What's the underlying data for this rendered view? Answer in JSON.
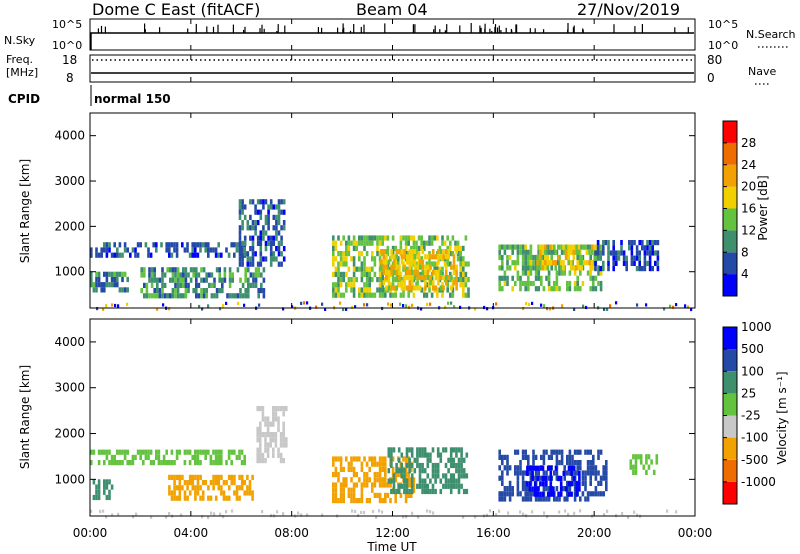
{
  "header": {
    "station": "Dome C East (fitACF)",
    "beam": "Beam 04",
    "date": "27/Nov/2019"
  },
  "top_panels": {
    "nsky_label": "N.Sky",
    "nsky_ticks": [
      "10^5",
      "10^0"
    ],
    "nsearch_label": "N.Search",
    "nsearch_ticks": [
      "10^5",
      "10^0"
    ],
    "freq_label": "Freq.",
    "freq_unit": "[MHz]",
    "freq_ticks": [
      "18",
      "8"
    ],
    "nave_label": "Nave",
    "nave_ticks": [
      "80",
      "0"
    ],
    "cpid_label": "CPID",
    "cpid_value": "normal 150"
  },
  "colors": {
    "power_scale": [
      "#0000ff",
      "#2449a6",
      "#3e8f6e",
      "#63c23e",
      "#f2d000",
      "#f2a200",
      "#ef6d00",
      "#ff0000"
    ],
    "velocity_scale": [
      "#ff0000",
      "#ef6d00",
      "#f2a200",
      "#c8c8c8",
      "#63c23e",
      "#3e8f6e",
      "#2449a6",
      "#0000ff"
    ]
  },
  "chart_data": [
    {
      "type": "heatmap",
      "name": "power",
      "ylabel": "Slant Range [km]",
      "yticks": [
        "1000",
        "2000",
        "3000",
        "4000"
      ],
      "ylim": [
        200,
        4500
      ],
      "colorbar_label": "Power [dB]",
      "colorbar_ticks": [
        "4",
        "8",
        "12",
        "16",
        "20",
        "24",
        "28"
      ],
      "colorbar_range": [
        0,
        32
      ],
      "regions": [
        {
          "x": [
            0.0,
            6.1
          ],
          "range": [
            1350,
            1650
          ],
          "value": 6
        },
        {
          "x": [
            0.0,
            1.5
          ],
          "range": [
            600,
            1000
          ],
          "value": 9
        },
        {
          "x": [
            2.0,
            6.9
          ],
          "range": [
            500,
            1100
          ],
          "value": 10
        },
        {
          "x": [
            5.9,
            7.7
          ],
          "range": [
            1200,
            2600
          ],
          "value": 7
        },
        {
          "x": [
            9.6,
            15.0
          ],
          "range": [
            500,
            1800
          ],
          "value": 14
        },
        {
          "x": [
            11.5,
            14.5
          ],
          "range": [
            600,
            1500
          ],
          "value": 19
        },
        {
          "x": [
            16.2,
            20.3
          ],
          "range": [
            600,
            1600
          ],
          "value": 13
        },
        {
          "x": [
            17.7,
            20.3
          ],
          "range": [
            1100,
            1600
          ],
          "value": 18
        },
        {
          "x": [
            20.0,
            22.5
          ],
          "range": [
            1100,
            1700
          ],
          "value": 6
        }
      ],
      "ground_echo": {
        "x": [
          0.0,
          24.0
        ],
        "range": [
          200,
          350
        ],
        "value": 12
      }
    },
    {
      "type": "heatmap",
      "name": "velocity",
      "ylabel": "Slant Range [km]",
      "yticks": [
        "1000",
        "2000",
        "3000",
        "4000"
      ],
      "ylim": [
        200,
        4500
      ],
      "colorbar_label": "Velocity [m s⁻¹]",
      "colorbar_ticks": [
        "1000",
        "500",
        "100",
        "25",
        "-25",
        "-100",
        "-500",
        "-1000"
      ],
      "regions": [
        {
          "x": [
            0.0,
            6.1
          ],
          "range": [
            1350,
            1650
          ],
          "value": 0
        },
        {
          "x": [
            0.0,
            0.9
          ],
          "range": [
            650,
            1000
          ],
          "value": 60
        },
        {
          "x": [
            3.1,
            6.5
          ],
          "range": [
            600,
            1100
          ],
          "value": -300
        },
        {
          "x": [
            6.6,
            7.8
          ],
          "range": [
            1400,
            2600
          ],
          "value": -80
        },
        {
          "x": [
            9.6,
            12.8
          ],
          "range": [
            500,
            1500
          ],
          "value": -350
        },
        {
          "x": [
            11.8,
            14.9
          ],
          "range": [
            700,
            1700
          ],
          "value": 70
        },
        {
          "x": [
            16.2,
            20.5
          ],
          "range": [
            600,
            1650
          ],
          "value": 300
        },
        {
          "x": [
            17.3,
            19.4
          ],
          "range": [
            700,
            1300
          ],
          "value": 700
        },
        {
          "x": [
            21.4,
            22.5
          ],
          "range": [
            1150,
            1550
          ],
          "value": 0
        }
      ],
      "ground_echo": {
        "x": [
          0.0,
          24.0
        ],
        "range": [
          200,
          350
        ],
        "value": -60
      }
    }
  ],
  "xaxis": {
    "label": "Time UT",
    "ticks": [
      "00:00",
      "04:00",
      "08:00",
      "12:00",
      "16:00",
      "20:00",
      "00:00"
    ],
    "range_hours": [
      0,
      24
    ]
  }
}
